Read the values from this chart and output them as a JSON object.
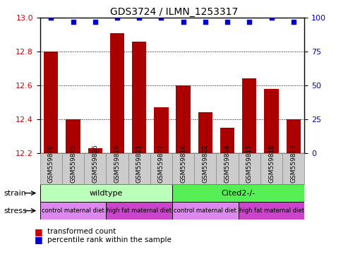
{
  "title": "GDS3724 / ILMN_1253317",
  "samples": [
    "GSM559820",
    "GSM559825",
    "GSM559826",
    "GSM559819",
    "GSM559821",
    "GSM559827",
    "GSM559816",
    "GSM559822",
    "GSM559824",
    "GSM559817",
    "GSM559818",
    "GSM559823"
  ],
  "bar_values": [
    12.8,
    12.4,
    12.23,
    12.91,
    12.86,
    12.47,
    12.6,
    12.44,
    12.35,
    12.64,
    12.58,
    12.4
  ],
  "percentile_values": [
    100,
    97,
    97,
    100,
    100,
    100,
    97,
    97,
    97,
    97,
    100,
    97
  ],
  "bar_color": "#aa0000",
  "dot_color": "#0000cc",
  "ylim_left": [
    12.2,
    13.0
  ],
  "ylim_right": [
    0,
    100
  ],
  "yticks_left": [
    12.2,
    12.4,
    12.6,
    12.8,
    13.0
  ],
  "yticks_right": [
    0,
    25,
    50,
    75,
    100
  ],
  "dotted_grid_values": [
    12.4,
    12.6,
    12.8
  ],
  "strain_wildtype_range": [
    0,
    6
  ],
  "strain_cited_range": [
    6,
    12
  ],
  "stress_ranges": [
    [
      0,
      3
    ],
    [
      3,
      6
    ],
    [
      6,
      9
    ],
    [
      9,
      12
    ]
  ],
  "stress_labels": [
    "control maternal diet",
    "high fat maternal diet",
    "control maternal diet",
    "high fat maternal diet"
  ],
  "stress_colors": [
    "#dd88ee",
    "#cc44cc",
    "#dd88ee",
    "#cc44cc"
  ],
  "strain_wildtype_label": "wildtype",
  "strain_cited_label": "Cited2-/-",
  "strain_label": "strain",
  "stress_label": "stress",
  "legend_bar_label": "transformed count",
  "legend_dot_label": "percentile rank within the sample",
  "strain_wt_color": "#bbffbb",
  "strain_cited_color": "#55ee55",
  "bar_color_legend": "#cc0000",
  "dot_color_legend": "#0000cc",
  "xticklabel_fontsize": 6.5,
  "title_fontsize": 10,
  "axis_tick_color_left": "#cc0000",
  "axis_tick_color_right": "#0000cc",
  "xtick_bg_color": "#cccccc",
  "xtick_edge_color": "#888888"
}
